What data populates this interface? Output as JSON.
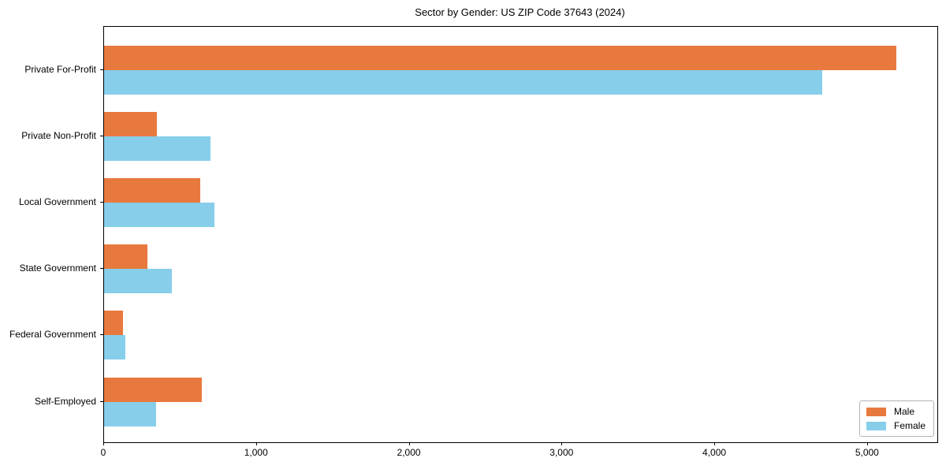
{
  "chart_data": {
    "type": "bar",
    "orientation": "horizontal",
    "title": "Sector by Gender: US ZIP Code 37643 (2024)",
    "categories": [
      "Private For-Profit",
      "Private Non-Profit",
      "Local Government",
      "State Government",
      "Federal Government",
      "Self-Employed"
    ],
    "series": [
      {
        "name": "Male",
        "color": "#e8793e",
        "values": [
          5185,
          345,
          630,
          285,
          125,
          640
        ]
      },
      {
        "name": "Female",
        "color": "#87ceeb",
        "values": [
          4700,
          695,
          720,
          445,
          140,
          340
        ]
      }
    ],
    "xlabel": "",
    "ylabel": "",
    "xlim": [
      0,
      5455
    ],
    "xticks": [
      0,
      1000,
      2000,
      3000,
      4000,
      5000
    ],
    "xtick_labels": [
      "0",
      "1,000",
      "2,000",
      "3,000",
      "4,000",
      "5,000"
    ],
    "grid": false,
    "legend_position": "lower right",
    "background_color": "#ffffff",
    "axis_color": "#000000"
  }
}
